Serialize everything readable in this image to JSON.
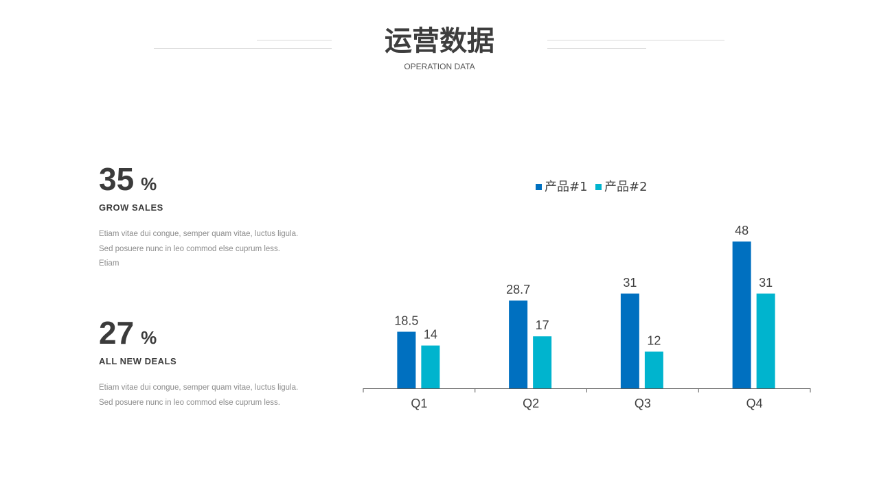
{
  "header": {
    "title": "运营数据",
    "subtitle": "OPERATION DATA"
  },
  "stats": [
    {
      "value": "35",
      "unit": "%",
      "label": "GROW SALES",
      "desc_lines": [
        "Etiam vitae  dui congue, semper quam vitae, luctus ligula.",
        "Sed posuere nunc in leo commod else cuprum less.",
        "Etiam"
      ]
    },
    {
      "value": "27",
      "unit": "%",
      "label": "ALL  NEW DEALS",
      "desc_lines": [
        "Etiam vitae  dui congue, semper quam vitae, luctus ligula.",
        "Sed posuere nunc in leo commod else cuprum less."
      ]
    }
  ],
  "colors": {
    "series1": "#0070C0",
    "series2": "#00B4CE",
    "axis": "#595959",
    "text": "#404040"
  },
  "chart_data": {
    "type": "bar",
    "categories": [
      "Q1",
      "Q2",
      "Q3",
      "Q4"
    ],
    "series": [
      {
        "name": "产品#1",
        "values": [
          18.5,
          28.7,
          31,
          48
        ]
      },
      {
        "name": "产品#2",
        "values": [
          14,
          17,
          12,
          31
        ]
      }
    ],
    "data_labels": true,
    "legend": "top",
    "grid": false,
    "ylim": [
      0,
      48
    ]
  }
}
